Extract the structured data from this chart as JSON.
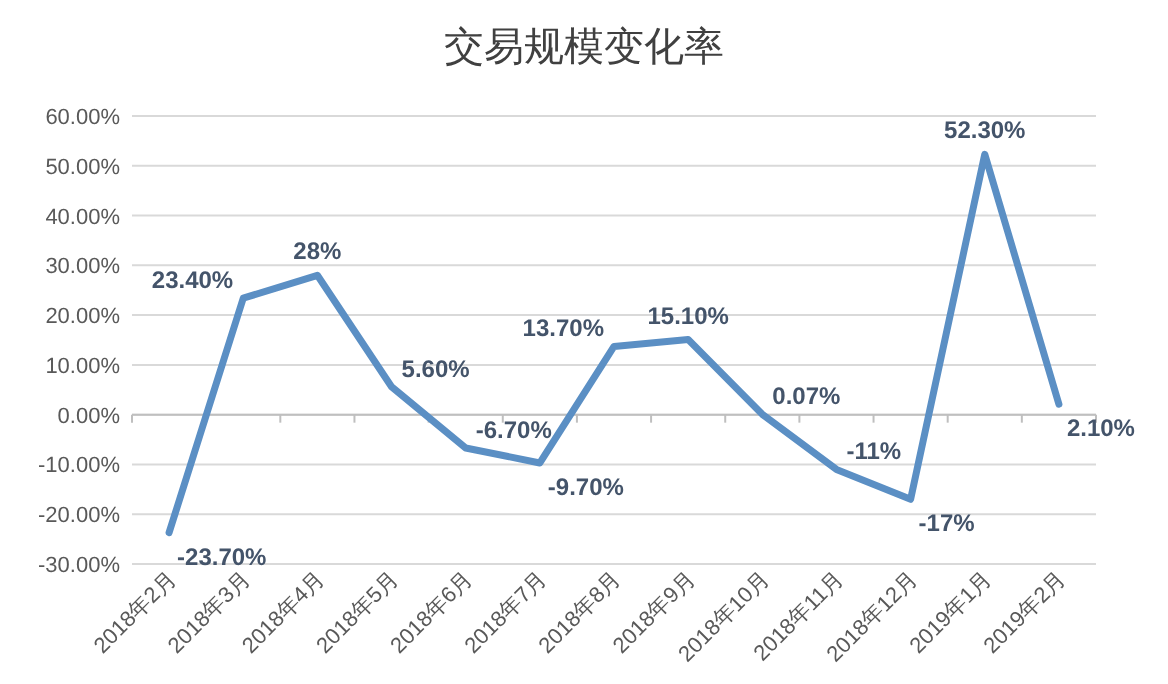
{
  "chart_data": {
    "type": "line",
    "title": "交易规模变化率",
    "categories": [
      "2018年2月",
      "2018年3月",
      "2018年4月",
      "2018年5月",
      "2018年6月",
      "2018年7月",
      "2018年8月",
      "2018年9月",
      "2018年10月",
      "2018年11月",
      "2018年12月",
      "2019年1月",
      "2019年2月"
    ],
    "series": [
      {
        "color": "#5b8fc4",
        "values": [
          -23.7,
          23.4,
          28,
          5.6,
          -6.7,
          -9.7,
          13.7,
          15.1,
          0.07,
          -11,
          -17,
          52.3,
          2.1
        ],
        "value_labels": [
          "-23.70%",
          "23.40%",
          "28%",
          "5.60%",
          "-6.70%",
          "-9.70%",
          "13.70%",
          "15.10%",
          "0.07%",
          "-11%",
          "-17%",
          "52.30%",
          "2.10%"
        ]
      }
    ],
    "ylim": [
      -30,
      60
    ],
    "yticks": [
      {
        "value": -30,
        "label": "-30.00%"
      },
      {
        "value": -20,
        "label": "-20.00%"
      },
      {
        "value": -10,
        "label": "-10.00%"
      },
      {
        "value": 0,
        "label": "0.00%"
      },
      {
        "value": 10,
        "label": "10.00%"
      },
      {
        "value": 20,
        "label": "20.00%"
      },
      {
        "value": 30,
        "label": "30.00%"
      },
      {
        "value": 40,
        "label": "40.00%"
      },
      {
        "value": 50,
        "label": "50.00%"
      },
      {
        "value": 60,
        "label": "60.00%"
      }
    ],
    "grid": "y",
    "marker": "none",
    "line_style": "solid"
  }
}
